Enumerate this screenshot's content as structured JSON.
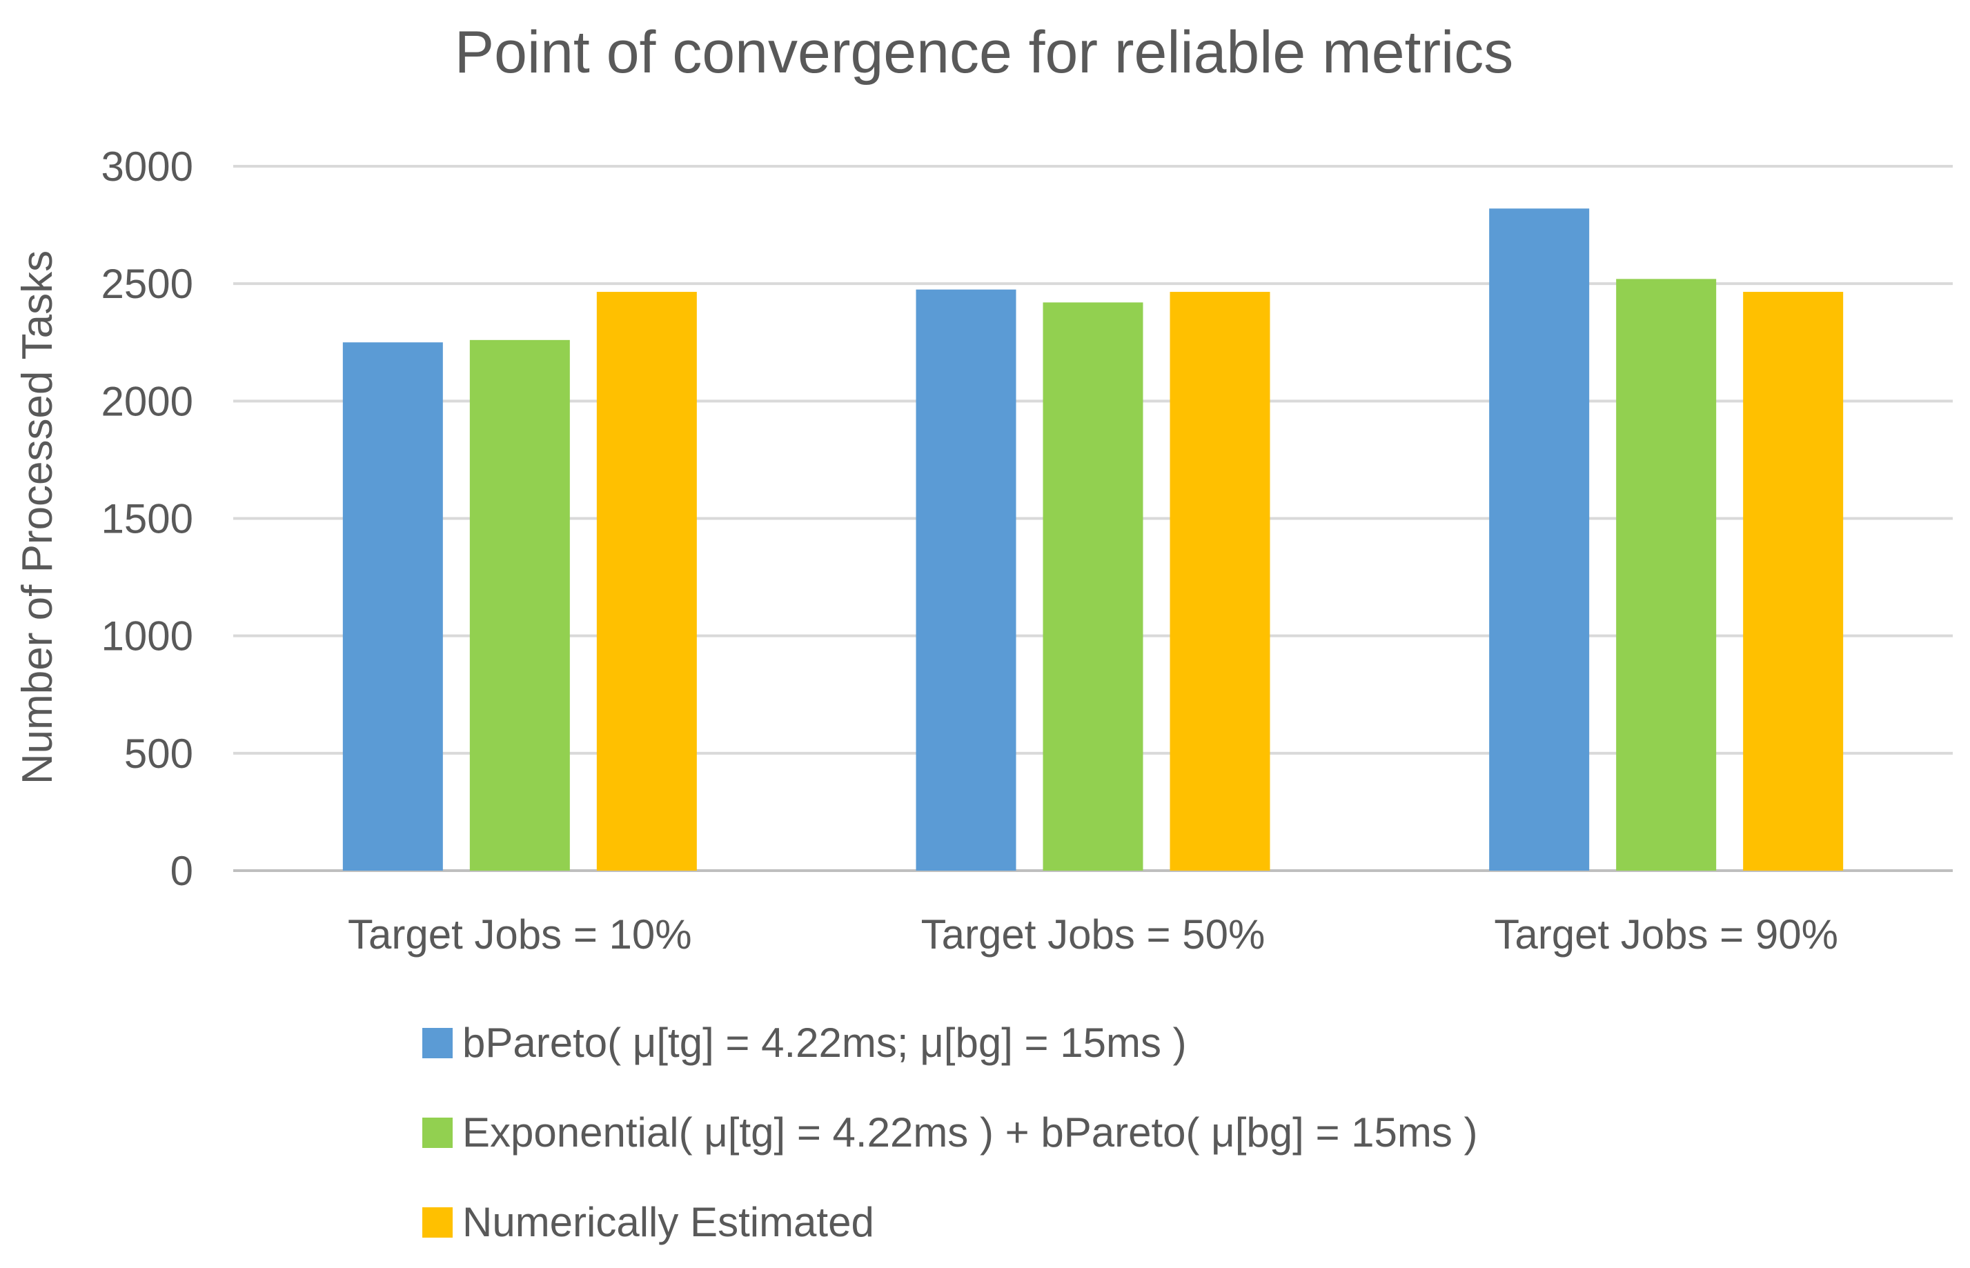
{
  "chart_data": {
    "type": "bar",
    "title": "Point of convergence for reliable metrics",
    "xlabel": "",
    "ylabel": "Number of Processed Tasks",
    "ylim": [
      0,
      3000
    ],
    "yticks": [
      0,
      500,
      1000,
      1500,
      2000,
      2500,
      3000
    ],
    "grid": true,
    "legend_position": "bottom",
    "categories": [
      "Target Jobs = 10%",
      "Target Jobs = 50%",
      "Target Jobs = 90%"
    ],
    "series": [
      {
        "name": "bPareto( μ[tg] = 4.22ms; μ[bg] = 15ms )",
        "color": "#5B9BD5",
        "values": [
          2250,
          2475,
          2820
        ]
      },
      {
        "name": "Exponential( μ[tg] = 4.22ms ) + bPareto( μ[bg] = 15ms )",
        "color": "#92D050",
        "values": [
          2260,
          2420,
          2520
        ]
      },
      {
        "name": "Numerically Estimated",
        "color": "#FFC000",
        "values": [
          2465,
          2465,
          2465
        ]
      }
    ],
    "colors": {
      "text": "#595959",
      "grid": "#d9d9d9",
      "axis": "#bfbfbf"
    }
  }
}
